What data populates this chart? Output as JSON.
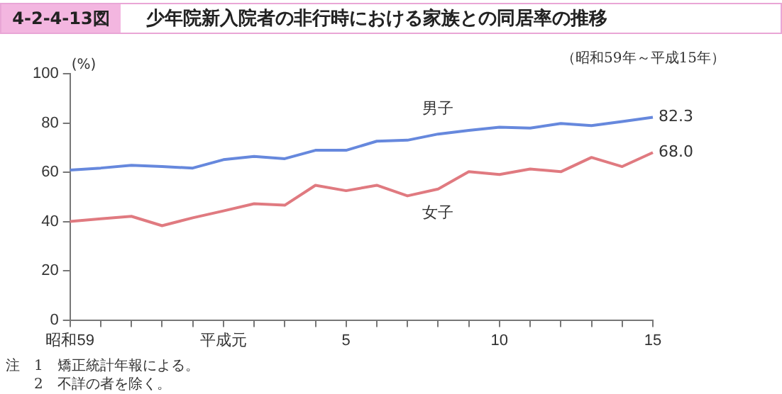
{
  "chart_data": {
    "type": "line",
    "title": "少年院新入院者の非行時における家族との同居率の推移",
    "subtitle": "（昭和59年～平成15年）",
    "ylabel": "(%)",
    "annotations": [
      "4-2-4-13図",
      "注　1　矯正統計年報による。",
      "　　2　不詳の者を除く。"
    ],
    "categories": [
      "昭和59",
      null,
      null,
      null,
      null,
      "平成元",
      null,
      null,
      null,
      "5",
      null,
      null,
      null,
      null,
      "10",
      null,
      null,
      null,
      null,
      "15"
    ],
    "series": [
      {
        "name": "男子",
        "color": "#6688dd",
        "values": [
          60.9,
          61.7,
          62.8,
          62.3,
          61.7,
          65.1,
          66.4,
          65.5,
          68.9,
          68.9,
          72.6,
          73.0,
          75.5,
          77.0,
          78.3,
          77.9,
          79.8,
          78.9,
          80.6,
          82.3
        ],
        "value_labels": [
          null,
          null,
          null,
          null,
          null,
          null,
          null,
          null,
          null,
          null,
          null,
          null,
          null,
          null,
          null,
          null,
          null,
          null,
          null,
          "82.3"
        ]
      },
      {
        "name": "女子",
        "color": "#e07a80",
        "values": [
          40.0,
          41.1,
          42.1,
          38.3,
          41.5,
          44.3,
          47.2,
          46.6,
          54.7,
          52.5,
          54.7,
          50.4,
          53.2,
          60.2,
          59.1,
          61.3,
          60.2,
          66.0,
          62.3,
          68.0
        ],
        "value_labels": [
          null,
          null,
          null,
          null,
          null,
          null,
          null,
          null,
          null,
          null,
          null,
          null,
          null,
          null,
          null,
          null,
          null,
          null,
          null,
          "68.0"
        ]
      }
    ],
    "ylim": [
      0,
      100
    ],
    "yticks": [
      0,
      20,
      40,
      60,
      80,
      100
    ],
    "grid": false,
    "legend": false,
    "marker": "none",
    "line_style": "solid"
  }
}
